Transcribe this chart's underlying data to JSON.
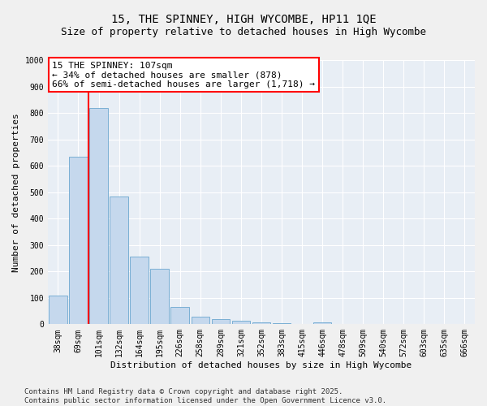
{
  "title_line1": "15, THE SPINNEY, HIGH WYCOMBE, HP11 1QE",
  "title_line2": "Size of property relative to detached houses in High Wycombe",
  "xlabel": "Distribution of detached houses by size in High Wycombe",
  "ylabel": "Number of detached properties",
  "categories": [
    "38sqm",
    "69sqm",
    "101sqm",
    "132sqm",
    "164sqm",
    "195sqm",
    "226sqm",
    "258sqm",
    "289sqm",
    "321sqm",
    "352sqm",
    "383sqm",
    "415sqm",
    "446sqm",
    "478sqm",
    "509sqm",
    "540sqm",
    "572sqm",
    "603sqm",
    "635sqm",
    "666sqm"
  ],
  "values": [
    110,
    635,
    820,
    485,
    255,
    210,
    65,
    28,
    18,
    13,
    8,
    5,
    0,
    8,
    0,
    0,
    0,
    0,
    0,
    0,
    0
  ],
  "bar_color": "#c5d8ed",
  "bar_edge_color": "#7aafd4",
  "red_line_index": 2,
  "annotation_title": "15 THE SPINNEY: 107sqm",
  "annotation_line1": "← 34% of detached houses are smaller (878)",
  "annotation_line2": "66% of semi-detached houses are larger (1,718) →",
  "ylim": [
    0,
    1000
  ],
  "yticks": [
    0,
    100,
    200,
    300,
    400,
    500,
    600,
    700,
    800,
    900,
    1000
  ],
  "bg_color": "#e8eef5",
  "fig_bg_color": "#f0f0f0",
  "footer_line1": "Contains HM Land Registry data © Crown copyright and database right 2025.",
  "footer_line2": "Contains public sector information licensed under the Open Government Licence v3.0.",
  "title_fontsize": 10,
  "subtitle_fontsize": 9,
  "axis_label_fontsize": 8,
  "tick_fontsize": 7,
  "annotation_fontsize": 8,
  "footer_fontsize": 6.5
}
